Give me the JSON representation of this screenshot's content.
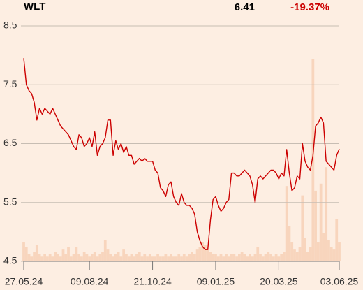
{
  "header": {
    "ticker": "WLT",
    "price": "6.41",
    "change": "-19.37%"
  },
  "chart_data": {
    "type": "line",
    "categories": [
      "27.05.24",
      null,
      null,
      null,
      null,
      null,
      null,
      null,
      null,
      null,
      null,
      null,
      null,
      null,
      null,
      null,
      null,
      null,
      null,
      null,
      null,
      null,
      null,
      null,
      null,
      "09.08.24",
      null,
      null,
      null,
      null,
      null,
      null,
      null,
      null,
      null,
      null,
      null,
      null,
      null,
      null,
      null,
      null,
      null,
      null,
      null,
      null,
      null,
      null,
      null,
      "21.10.24",
      null,
      null,
      null,
      null,
      null,
      null,
      null,
      null,
      null,
      null,
      null,
      null,
      null,
      null,
      null,
      null,
      null,
      null,
      null,
      null,
      null,
      null,
      null,
      "09.01.25",
      null,
      null,
      null,
      null,
      null,
      null,
      null,
      null,
      null,
      null,
      null,
      null,
      null,
      null,
      null,
      null,
      null,
      null,
      null,
      null,
      null,
      null,
      null,
      "20.03.25",
      null,
      null,
      null,
      null,
      null,
      null,
      null,
      null,
      null,
      null,
      null,
      null,
      null,
      null,
      null,
      null,
      null,
      null,
      null,
      null,
      null,
      null,
      "03.06.25"
    ],
    "series": [
      {
        "color": "#cc0000",
        "values": [
          7.95,
          7.5,
          7.4,
          7.35,
          7.2,
          6.9,
          7.1,
          7.0,
          7.1,
          7.05,
          7.0,
          7.1,
          7.0,
          6.9,
          6.8,
          6.75,
          6.7,
          6.65,
          6.55,
          6.45,
          6.4,
          6.65,
          6.6,
          6.45,
          6.5,
          6.6,
          6.45,
          6.7,
          6.3,
          6.45,
          6.5,
          6.6,
          6.9,
          6.9,
          6.3,
          6.55,
          6.4,
          6.5,
          6.35,
          6.45,
          6.3,
          6.3,
          6.15,
          6.2,
          6.25,
          6.2,
          6.25,
          6.2,
          6.2,
          6.2,
          6.05,
          6.0,
          5.75,
          5.7,
          5.6,
          5.8,
          5.85,
          5.6,
          5.5,
          5.45,
          5.65,
          5.5,
          5.45,
          5.45,
          5.4,
          5.3,
          5.0,
          4.85,
          4.75,
          4.7,
          4.7,
          5.2,
          5.55,
          5.6,
          5.45,
          5.35,
          5.4,
          5.5,
          5.55,
          6.0,
          6.0,
          5.95,
          5.95,
          6.0,
          6.05,
          6.0,
          5.95,
          5.8,
          5.5,
          5.9,
          5.95,
          5.9,
          5.95,
          6.0,
          6.05,
          6.05,
          6.0,
          5.9,
          6.0,
          5.95,
          6.4,
          6.0,
          5.7,
          5.75,
          5.95,
          5.9,
          6.5,
          6.2,
          6.1,
          6.05,
          6.3,
          6.8,
          6.85,
          6.95,
          6.85,
          6.2,
          6.15,
          6.1,
          6.05,
          6.3,
          6.41
        ]
      }
    ],
    "volume": {
      "color": "#f8d5bd",
      "values": [
        8,
        6,
        3,
        2,
        4,
        7,
        3,
        2,
        3,
        2,
        3,
        2,
        4,
        3,
        2,
        5,
        3,
        6,
        2,
        3,
        6,
        3,
        2,
        4,
        3,
        2,
        3,
        4,
        2,
        3,
        4,
        9,
        5,
        3,
        2,
        3,
        4,
        2,
        5,
        3,
        2,
        3,
        2,
        3,
        4,
        2,
        3,
        2,
        3,
        2,
        2,
        3,
        2,
        2,
        3,
        2,
        3,
        2,
        2,
        3,
        2,
        3,
        2,
        3,
        4,
        3,
        5,
        6,
        8,
        7,
        5,
        4,
        3,
        3,
        2,
        3,
        2,
        3,
        2,
        3,
        3,
        2,
        3,
        4,
        3,
        2,
        3,
        2,
        3,
        6,
        3,
        2,
        3,
        4,
        3,
        2,
        3,
        2,
        3,
        4,
        32,
        15,
        8,
        5,
        4,
        6,
        28,
        10,
        4,
        6,
        86,
        30,
        8,
        33,
        12,
        40,
        9,
        6,
        5,
        18,
        8
      ]
    },
    "ylim": [
      4.5,
      8.5
    ],
    "yticks": [
      4.5,
      5.5,
      6.5,
      7.5,
      8.5
    ],
    "y2lim": [
      0,
      100
    ],
    "grid": true
  }
}
